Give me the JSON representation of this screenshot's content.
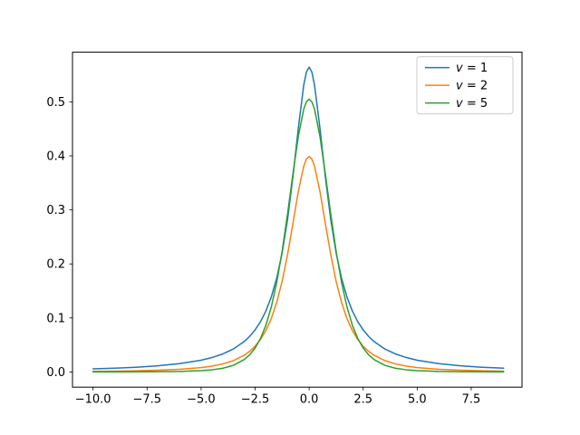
{
  "figure": {
    "background": "#ffffff",
    "title": ""
  },
  "chart_data": {
    "type": "line",
    "title": "",
    "xlabel": "",
    "ylabel": "",
    "grid": false,
    "xlim": [
      -10.95,
      9.85
    ],
    "ylim": [
      -0.0282,
      0.592
    ],
    "x_ticks": [
      -10.0,
      -7.5,
      -5.0,
      -2.5,
      0.0,
      2.5,
      5.0,
      7.5
    ],
    "x_tick_labels": [
      "−10.0",
      "−7.5",
      "−5.0",
      "−2.5",
      "0.0",
      "2.5",
      "5.0",
      "7.5"
    ],
    "y_ticks": [
      0.0,
      0.1,
      0.2,
      0.3,
      0.4,
      0.5
    ],
    "y_tick_labels": [
      "0.0",
      "0.1",
      "0.2",
      "0.3",
      "0.4",
      "0.5"
    ],
    "legend": {
      "position": "upper right",
      "entries": [
        {
          "label": "v = 1",
          "var": "v",
          "rest": " = 1",
          "color": "#1f77b4"
        },
        {
          "label": "v = 2",
          "var": "v",
          "rest": " = 2",
          "color": "#ff7f0e"
        },
        {
          "label": "v = 5",
          "var": "v",
          "rest": " = 5",
          "color": "#2ca02c"
        }
      ]
    },
    "x": [
      -10,
      -9,
      -8,
      -7,
      -6,
      -5,
      -4.5,
      -4,
      -3.5,
      -3,
      -2.75,
      -2.5,
      -2.25,
      -2,
      -1.75,
      -1.5,
      -1.25,
      -1,
      -0.75,
      -0.5,
      -0.25,
      -0.125,
      0,
      0.125,
      0.25,
      0.5,
      0.75,
      1,
      1.25,
      1.5,
      1.75,
      2,
      2.25,
      2.5,
      2.75,
      3,
      3.5,
      4,
      4.5,
      5,
      6,
      7,
      8,
      9
    ],
    "series": [
      {
        "name": "v = 1",
        "color": "#1f77b4",
        "peak": 0.5642,
        "values": [
          0.0056,
          0.0069,
          0.0087,
          0.0113,
          0.0153,
          0.0217,
          0.0266,
          0.0332,
          0.0426,
          0.0564,
          0.0659,
          0.0778,
          0.0931,
          0.1128,
          0.1389,
          0.1736,
          0.2202,
          0.2821,
          0.3611,
          0.4514,
          0.531,
          0.5555,
          0.5642,
          0.5555,
          0.531,
          0.4514,
          0.3611,
          0.2821,
          0.2202,
          0.1736,
          0.1389,
          0.1128,
          0.0931,
          0.0778,
          0.0659,
          0.0564,
          0.0426,
          0.0332,
          0.0266,
          0.0217,
          0.0153,
          0.0113,
          0.0087,
          0.0069
        ]
      },
      {
        "name": "v = 2",
        "color": "#ff7f0e",
        "peak": 0.3989,
        "values": [
          0.0011,
          0.0015,
          0.0021,
          0.0031,
          0.0048,
          0.008,
          0.0108,
          0.0148,
          0.021,
          0.0309,
          0.0382,
          0.0476,
          0.0601,
          0.0768,
          0.099,
          0.1288,
          0.1678,
          0.2171,
          0.2751,
          0.3343,
          0.3809,
          0.3943,
          0.3989,
          0.3943,
          0.3809,
          0.3343,
          0.2751,
          0.2171,
          0.1678,
          0.1288,
          0.099,
          0.0768,
          0.0601,
          0.0476,
          0.0382,
          0.0309,
          0.021,
          0.0148,
          0.0108,
          0.008,
          0.0048,
          0.0031,
          0.0021,
          0.0015
        ]
      },
      {
        "name": "v = 5",
        "color": "#2ca02c",
        "peak": 0.505,
        "values": [
          0.0001,
          0.0001,
          0.0002,
          0.0004,
          0.0009,
          0.0023,
          0.0039,
          0.0068,
          0.0123,
          0.023,
          0.0318,
          0.0443,
          0.062,
          0.0866,
          0.1204,
          0.1657,
          0.2233,
          0.2922,
          0.3667,
          0.4362,
          0.4865,
          0.5003,
          0.505,
          0.5003,
          0.4865,
          0.4362,
          0.3667,
          0.2922,
          0.2233,
          0.1657,
          0.1204,
          0.0866,
          0.062,
          0.0443,
          0.0318,
          0.023,
          0.0123,
          0.0068,
          0.0039,
          0.0023,
          0.0009,
          0.0004,
          0.0002,
          0.0001
        ]
      }
    ]
  }
}
